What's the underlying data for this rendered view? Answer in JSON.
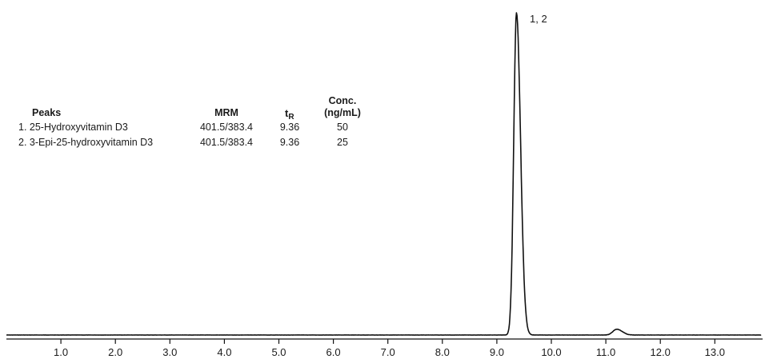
{
  "chart_data": {
    "type": "line",
    "xlim": [
      0,
      13.85
    ],
    "ylim": [
      0,
      100
    ],
    "x_ticks": [
      1.0,
      2.0,
      3.0,
      4.0,
      5.0,
      6.0,
      7.0,
      8.0,
      9.0,
      10.0,
      11.0,
      12.0,
      13.0
    ],
    "x_tick_labels": [
      "1.0",
      "2.0",
      "3.0",
      "4.0",
      "5.0",
      "6.0",
      "7.0",
      "8.0",
      "9.0",
      "10.0",
      "11.0",
      "12.0",
      "13.0"
    ],
    "grid": false,
    "baseline": 1.2,
    "peaks": [
      {
        "label": "1, 2",
        "rt": 9.36,
        "height": 100,
        "sigma_left": 0.05,
        "sigma_right": 0.075
      },
      {
        "label": "",
        "rt": 11.2,
        "height": 1.8,
        "sigma_left": 0.07,
        "sigma_right": 0.1
      }
    ],
    "peak_label": "1, 2",
    "table": {
      "headers": {
        "peaks": "Peaks",
        "mrm": "MRM",
        "tr_main": "t",
        "tr_sub": "R",
        "conc_line1": "Conc.",
        "conc_line2": "(ng/mL)"
      },
      "rows": [
        {
          "num": "1.",
          "name": "25-Hydroxyvitamin D3",
          "mrm": "401.5/383.4",
          "tr": "9.36",
          "conc": "50"
        },
        {
          "num": "2.",
          "name": "3-Epi-25-hydroxyvitamin D3",
          "mrm": "401.5/383.4",
          "tr": "9.36",
          "conc": "25"
        }
      ]
    }
  },
  "colors": {
    "trace": "#111111",
    "axis": "#111111",
    "text": "#1a1a1a"
  }
}
